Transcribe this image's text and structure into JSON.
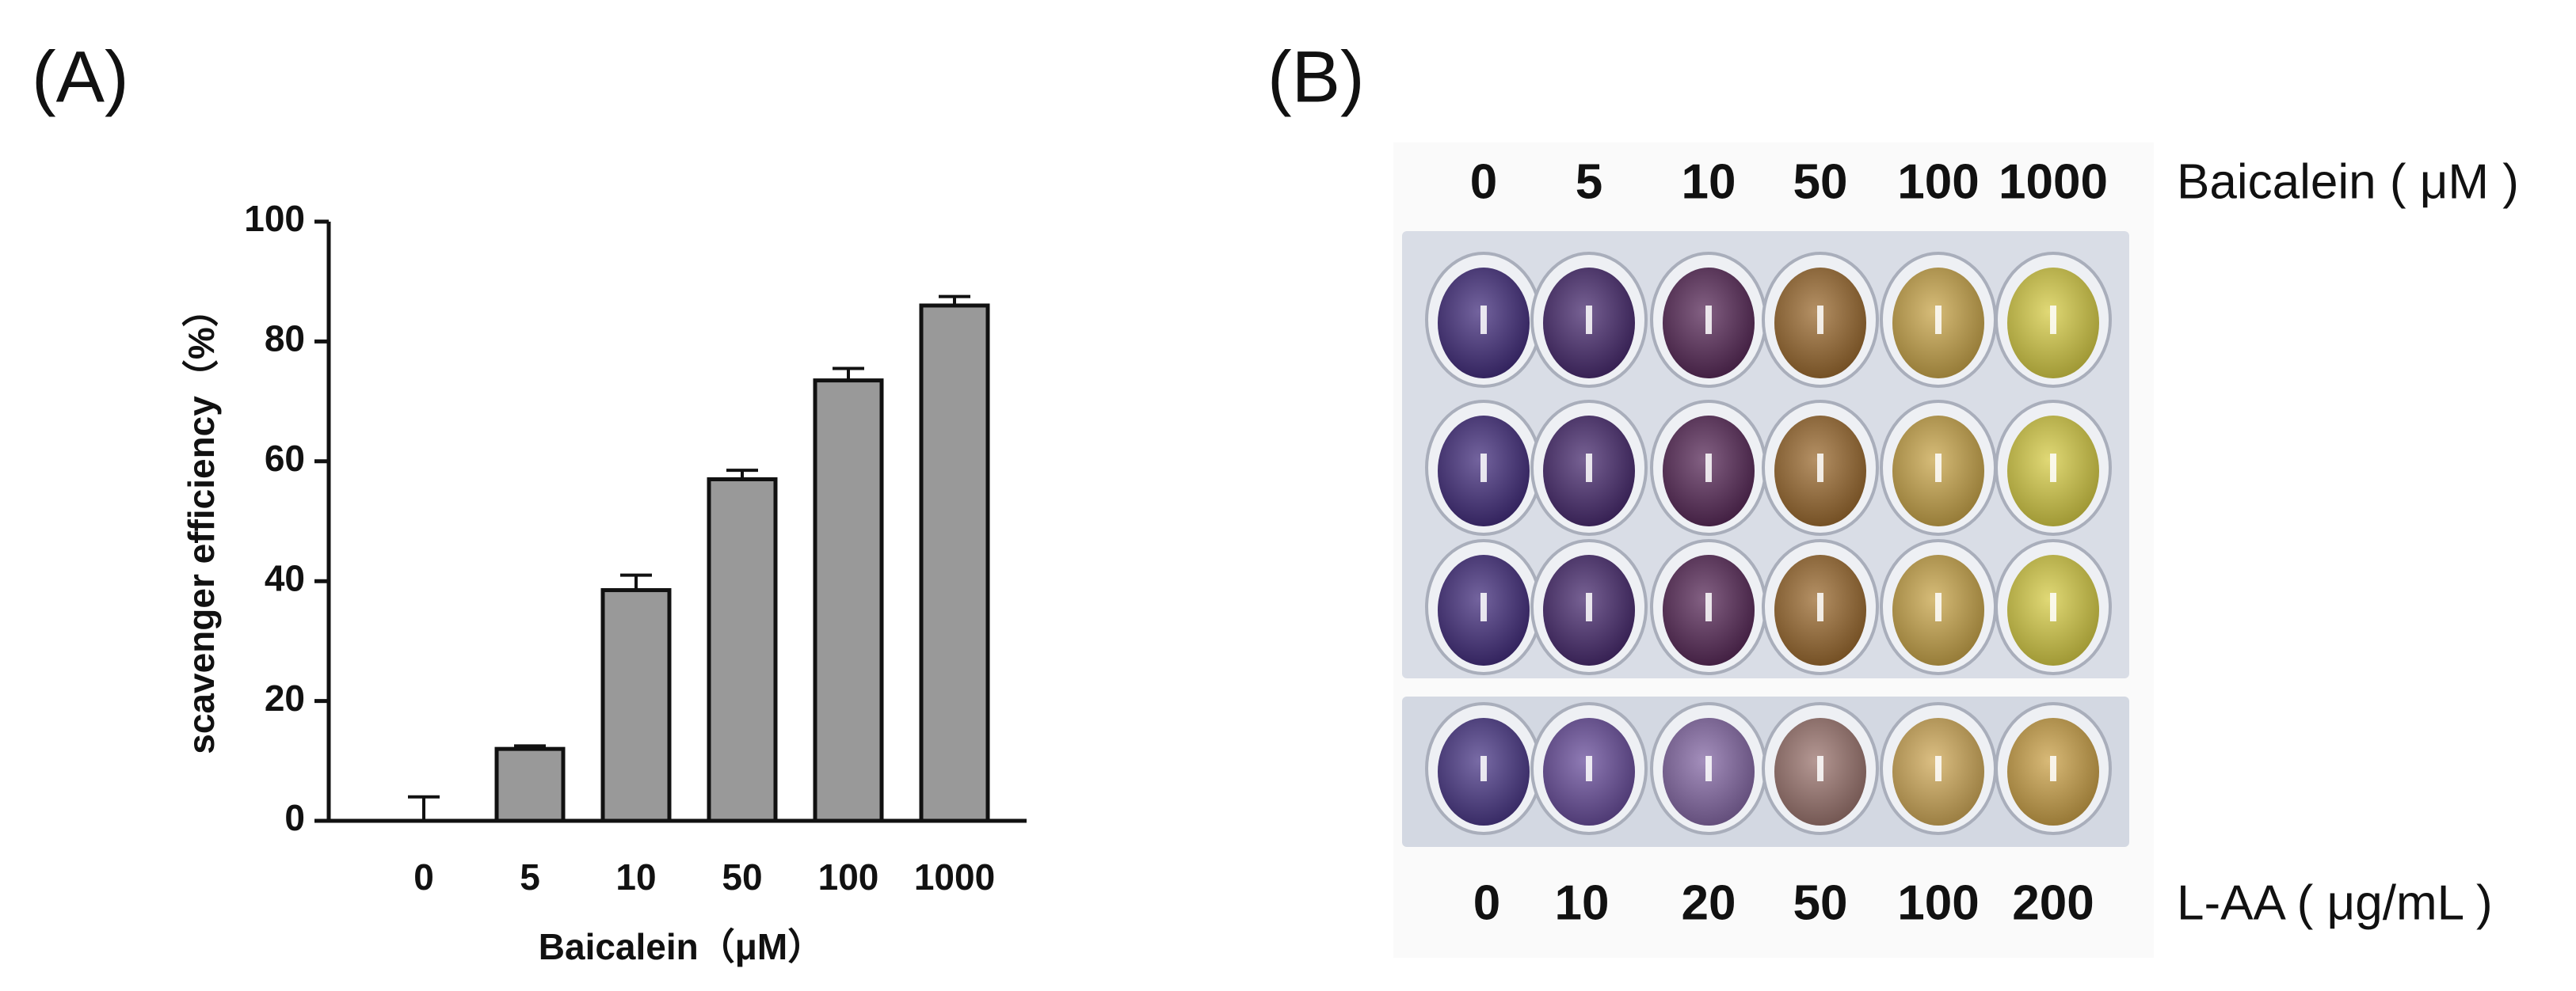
{
  "chart_data": {
    "type": "bar",
    "panel_label": "(A)",
    "x_label": "Baicalein（μM）",
    "y_label": "scavenger efficiency（%）",
    "categories": [
      "0",
      "5",
      "10",
      "50",
      "100",
      "1000"
    ],
    "values": [
      0,
      12,
      38.5,
      57,
      73.5,
      86
    ],
    "errors": [
      4,
      0.5,
      2.5,
      1.5,
      2,
      1.5
    ],
    "color": "#999999",
    "ylim": [
      0,
      100
    ],
    "yticks": [
      0,
      20,
      40,
      60,
      80,
      100
    ],
    "grid": false
  },
  "panel_b": {
    "label": "(B)",
    "top_labels": [
      "0",
      "5",
      "10",
      "50",
      "100",
      "1000"
    ],
    "top_title": "Baicalein ( μM )",
    "bottom_labels": [
      "0",
      "10",
      "20",
      "50",
      "100",
      "200"
    ],
    "bottom_title": "L-AA ( μg/mL )"
  }
}
